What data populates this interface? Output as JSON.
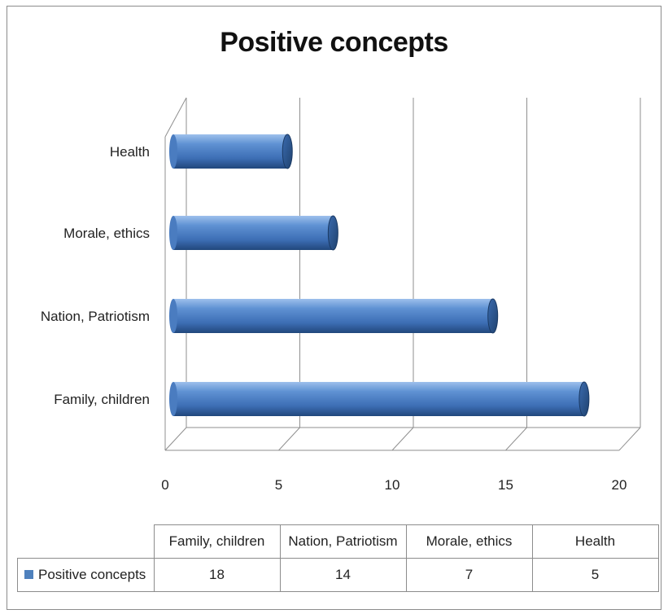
{
  "chart_data": {
    "type": "bar",
    "orientation": "horizontal",
    "title": "Positive concepts",
    "categories": [
      "Family, children",
      "Nation, Patriotism",
      "Morale, ethics",
      "Health"
    ],
    "series": [
      {
        "name": "Positive concepts",
        "values": [
          18,
          14,
          7,
          5
        ],
        "color": "#4f81bd"
      }
    ],
    "xlim": [
      0,
      20
    ],
    "x_ticks": [
      0,
      5,
      10,
      15,
      20
    ],
    "grid": true,
    "legend": "data-table",
    "data_table": {
      "headers": [
        "Family, children",
        "Nation, Patriotism",
        "Morale, ethics",
        "Health"
      ],
      "row_label": "Positive concepts",
      "values": [
        "18",
        "14",
        "7",
        "5"
      ]
    }
  }
}
